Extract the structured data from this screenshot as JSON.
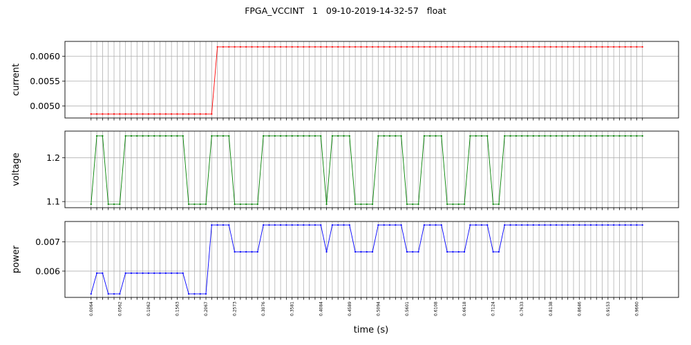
{
  "chart_data": {
    "title": "FPGA_VCCINT   1   09-10-2019-14-32-57   float",
    "type": "line",
    "xlabel": "time (s)",
    "x_start": 0.0064,
    "x_step": 0.0101,
    "n_points": 97,
    "xlim": [
      -0.0395,
      1.0395
    ],
    "grid": true,
    "xtick_labels": [
      "0.0064",
      "0.0562",
      "0.1062",
      "0.1563",
      "0.2067",
      "0.2573",
      "0.3076",
      "0.3581",
      "0.4084",
      "0.4589",
      "0.5094",
      "0.5601",
      "0.6108",
      "0.6618",
      "0.7124",
      "0.7633",
      "0.8138",
      "0.8646",
      "0.9153",
      "0.9660"
    ],
    "series": [
      {
        "name": "current",
        "ylabel": "current",
        "color": "#ff0000",
        "ylim": [
          0.00476,
          0.0063
        ],
        "yticks": [
          0.005,
          0.0055,
          0.006
        ],
        "ytick_labels": [
          "0.0050",
          "0.0055",
          "0.0060"
        ],
        "segments": [
          [
            0,
            21,
            0.00484
          ],
          [
            22,
            96,
            0.00619
          ]
        ]
      },
      {
        "name": "voltage",
        "ylabel": "voltage",
        "color": "#008000",
        "ylim": [
          1.086,
          1.261
        ],
        "yticks": [
          1.1,
          1.2
        ],
        "ytick_labels": [
          "1.1",
          "1.2"
        ],
        "segments": [
          [
            0,
            0,
            1.094
          ],
          [
            1,
            2,
            1.25
          ],
          [
            3,
            5,
            1.094
          ],
          [
            6,
            16,
            1.25
          ],
          [
            17,
            20,
            1.094
          ],
          [
            21,
            24,
            1.25
          ],
          [
            25,
            29,
            1.094
          ],
          [
            30,
            40,
            1.25
          ],
          [
            41,
            41,
            1.094
          ],
          [
            42,
            45,
            1.25
          ],
          [
            46,
            49,
            1.094
          ],
          [
            50,
            54,
            1.25
          ],
          [
            55,
            57,
            1.094
          ],
          [
            58,
            61,
            1.25
          ],
          [
            62,
            65,
            1.094
          ],
          [
            66,
            69,
            1.25
          ],
          [
            70,
            71,
            1.094
          ],
          [
            72,
            96,
            1.25
          ]
        ]
      },
      {
        "name": "power",
        "ylabel": "power",
        "color": "#0000ff",
        "ylim": [
          0.0051,
          0.0077
        ],
        "yticks": [
          0.006,
          0.007
        ],
        "ytick_labels": [
          "0.006",
          "0.007"
        ],
        "segments": [
          [
            0,
            0,
            0.00522
          ],
          [
            1,
            2,
            0.00593
          ],
          [
            3,
            5,
            0.00522
          ],
          [
            6,
            16,
            0.00593
          ],
          [
            17,
            20,
            0.00522
          ],
          [
            21,
            24,
            0.00758
          ],
          [
            25,
            29,
            0.00666
          ],
          [
            30,
            40,
            0.00758
          ],
          [
            41,
            41,
            0.00666
          ],
          [
            42,
            45,
            0.00758
          ],
          [
            46,
            49,
            0.00666
          ],
          [
            50,
            54,
            0.00758
          ],
          [
            55,
            57,
            0.00666
          ],
          [
            58,
            61,
            0.00758
          ],
          [
            62,
            65,
            0.00666
          ],
          [
            66,
            69,
            0.00758
          ],
          [
            70,
            71,
            0.00666
          ],
          [
            72,
            96,
            0.00758
          ]
        ]
      }
    ]
  }
}
